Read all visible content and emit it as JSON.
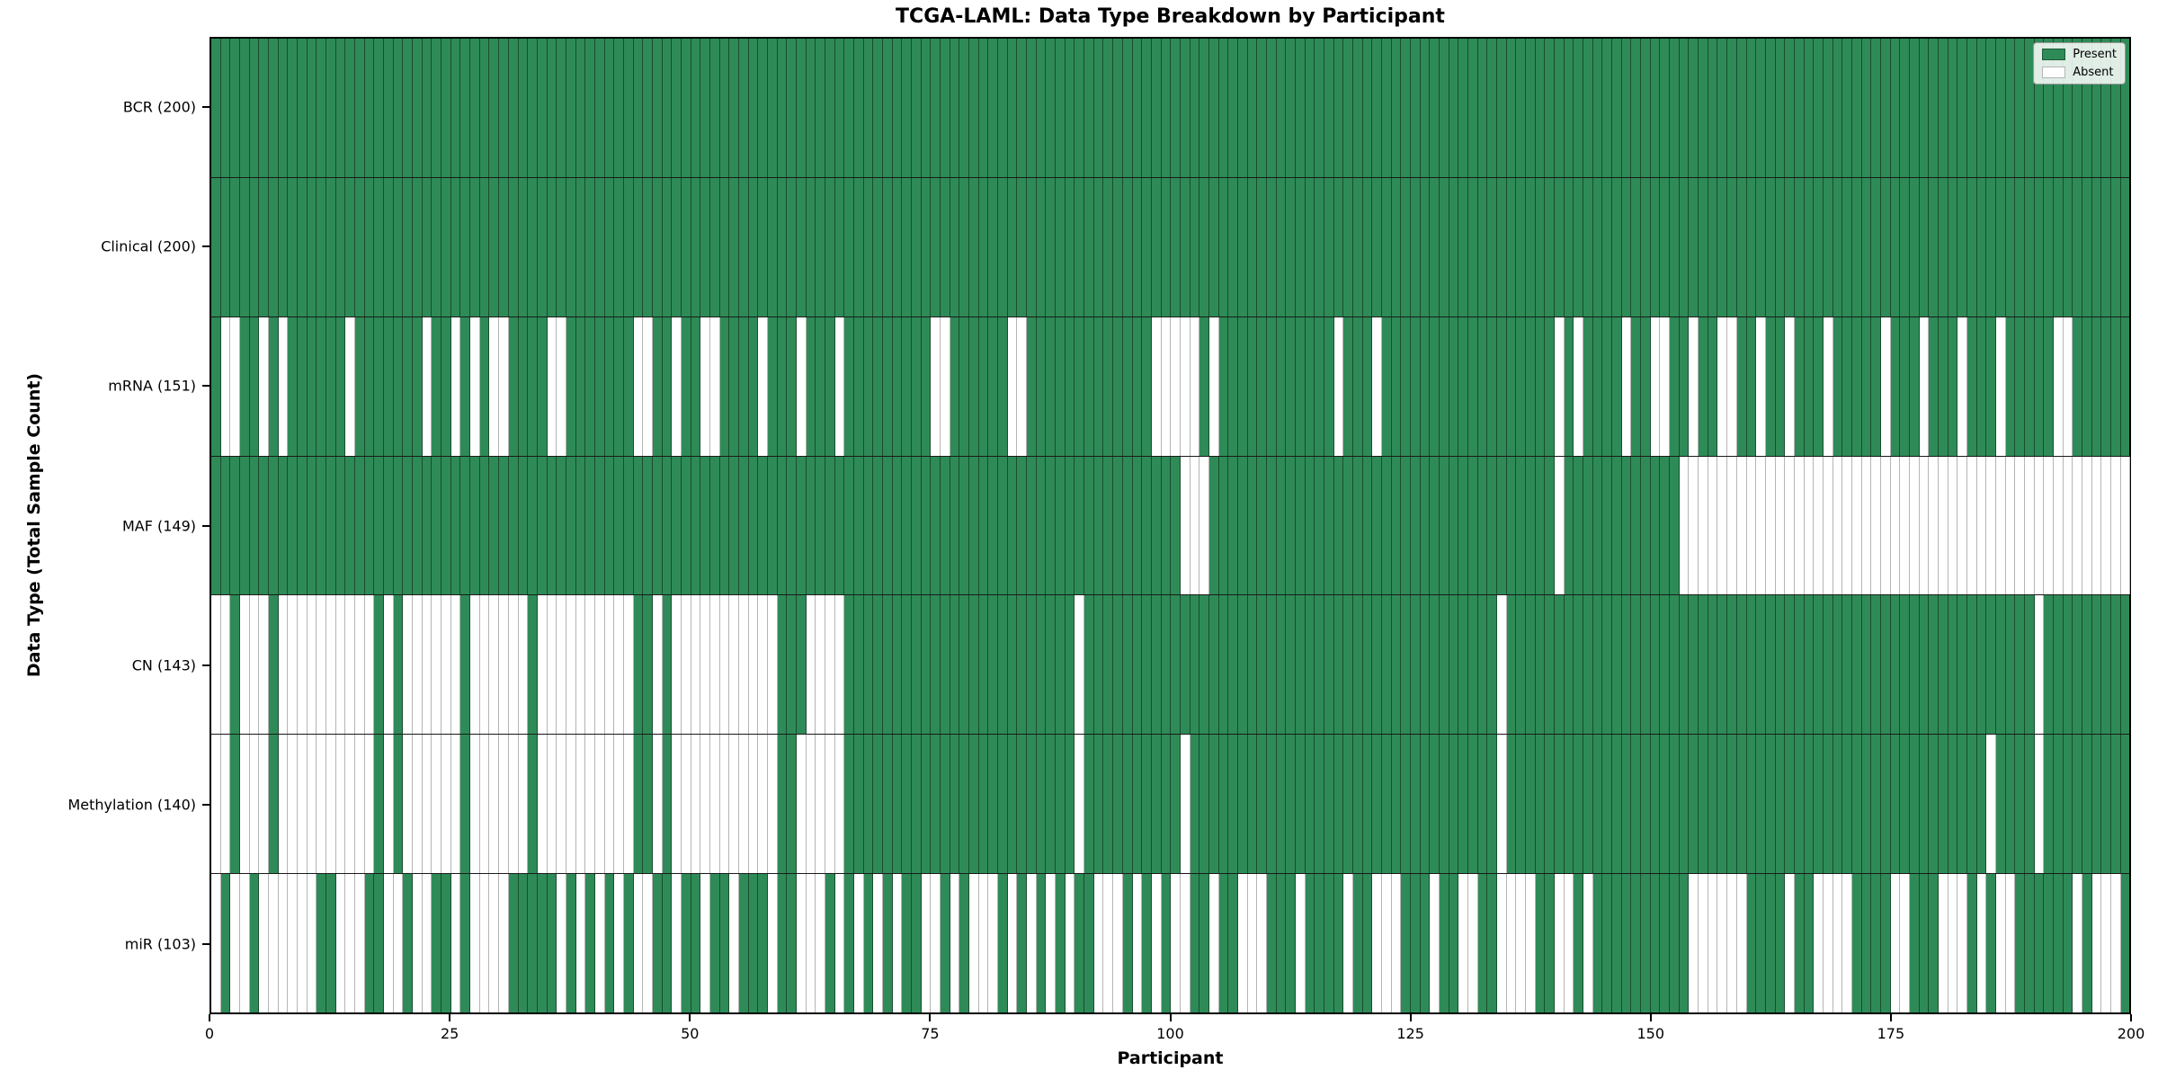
{
  "title": "TCGA-LAML: Data Type Breakdown by Participant",
  "xlabel": "Participant",
  "ylabel": "Data Type (Total Sample Count)",
  "legend": {
    "present_label": "Present",
    "absent_label": "Absent"
  },
  "colors": {
    "present": "#2e8b57",
    "absent": "#ffffff"
  },
  "chart_data": {
    "type": "heatmap",
    "n_participants": 200,
    "x_ticks": [
      0,
      25,
      50,
      75,
      100,
      125,
      150,
      175,
      200
    ],
    "x_range": [
      0,
      200
    ],
    "legend_entries": [
      "Present",
      "Absent"
    ],
    "legend_position": "upper right",
    "rows": [
      {
        "name": "BCR",
        "label": "BCR (200)",
        "present_count": 200,
        "absent": []
      },
      {
        "name": "Clinical",
        "label": "Clinical (200)",
        "present_count": 200,
        "absent": []
      },
      {
        "name": "mRNA",
        "label": "mRNA (151)",
        "present_count": 151,
        "absent": [
          1,
          2,
          5,
          7,
          14,
          22,
          25,
          27,
          29,
          30,
          35,
          36,
          44,
          45,
          48,
          51,
          52,
          57,
          61,
          65,
          75,
          76,
          83,
          84,
          98,
          99,
          100,
          101,
          102,
          104,
          117,
          121,
          140,
          142,
          147,
          150,
          151,
          154,
          157,
          158,
          161,
          164,
          168,
          174,
          178,
          182,
          186,
          192,
          193
        ]
      },
      {
        "name": "MAF",
        "label": "MAF (149)",
        "present_count": 149,
        "absent": [
          101,
          102,
          103,
          140,
          153,
          154,
          155,
          156,
          157,
          158,
          159,
          160,
          161,
          162,
          163,
          164,
          165,
          166,
          167,
          168,
          169,
          170,
          171,
          172,
          173,
          174,
          175,
          176,
          177,
          178,
          179,
          180,
          181,
          182,
          183,
          184,
          185,
          186,
          187,
          188,
          189,
          190,
          191,
          192,
          193,
          194,
          195,
          196,
          197,
          198,
          199
        ]
      },
      {
        "name": "CN",
        "label": "CN (143)",
        "present_count": 143,
        "absent": [
          0,
          1,
          3,
          4,
          5,
          7,
          8,
          9,
          10,
          11,
          12,
          13,
          14,
          15,
          16,
          18,
          20,
          21,
          22,
          23,
          24,
          25,
          27,
          28,
          29,
          30,
          31,
          32,
          34,
          35,
          36,
          37,
          38,
          39,
          40,
          41,
          42,
          43,
          46,
          48,
          49,
          50,
          51,
          52,
          53,
          54,
          55,
          56,
          57,
          58,
          62,
          63,
          64,
          65,
          90,
          134,
          190
        ]
      },
      {
        "name": "Methylation",
        "label": "Methylation (140)",
        "present_count": 140,
        "absent": [
          0,
          1,
          3,
          4,
          5,
          7,
          8,
          9,
          10,
          11,
          12,
          13,
          14,
          15,
          16,
          18,
          20,
          21,
          22,
          23,
          24,
          25,
          27,
          28,
          29,
          30,
          31,
          32,
          34,
          35,
          36,
          37,
          38,
          39,
          40,
          41,
          42,
          43,
          46,
          48,
          49,
          50,
          51,
          52,
          53,
          54,
          55,
          56,
          57,
          58,
          61,
          62,
          63,
          64,
          65,
          90,
          101,
          134,
          185,
          190
        ]
      },
      {
        "name": "miR",
        "label": "miR (103)",
        "present_count": 103,
        "absent": [
          0,
          2,
          3,
          5,
          6,
          7,
          8,
          9,
          10,
          13,
          14,
          15,
          18,
          19,
          21,
          22,
          25,
          27,
          28,
          29,
          30,
          36,
          38,
          40,
          42,
          44,
          45,
          48,
          51,
          54,
          58,
          61,
          62,
          63,
          65,
          67,
          69,
          71,
          74,
          75,
          77,
          79,
          80,
          81,
          83,
          85,
          87,
          89,
          92,
          93,
          94,
          96,
          98,
          100,
          101,
          104,
          107,
          108,
          109,
          113,
          118,
          121,
          122,
          123,
          127,
          130,
          131,
          134,
          135,
          136,
          137,
          140,
          141,
          143,
          154,
          155,
          156,
          157,
          158,
          159,
          164,
          167,
          168,
          169,
          170,
          175,
          176,
          180,
          181,
          182,
          184,
          186,
          187,
          194,
          196,
          197,
          198
        ]
      }
    ]
  }
}
